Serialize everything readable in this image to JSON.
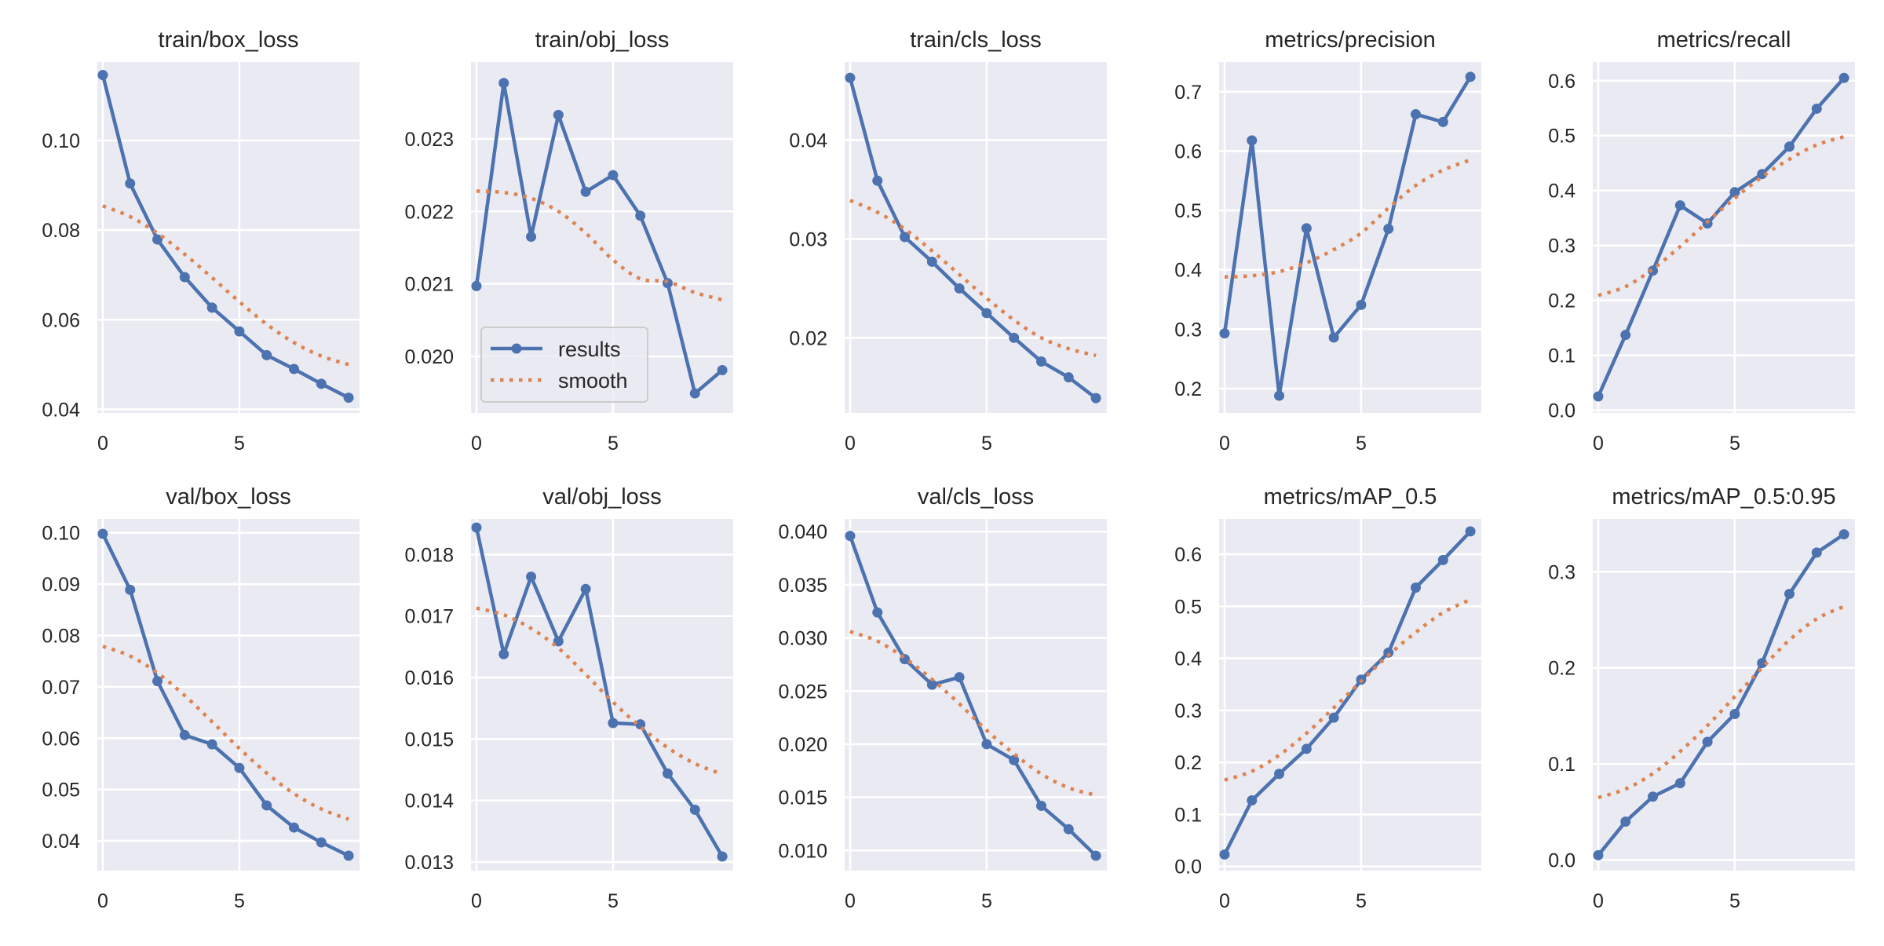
{
  "chart_data": [
    {
      "type": "line",
      "title": "train/box_loss",
      "xlabel": "",
      "ylabel": "",
      "x": [
        0,
        1,
        2,
        3,
        4,
        5,
        6,
        7,
        8,
        9
      ],
      "xticks": [
        0,
        5
      ],
      "xlim": [
        -0.2,
        9.4
      ],
      "ylim": [
        0.0392,
        0.1175
      ],
      "yticks": [
        0.04,
        0.06,
        0.08,
        0.1
      ],
      "ytick_labels": [
        "0.04",
        "0.06",
        "0.08",
        "0.10"
      ],
      "grid": true,
      "series": [
        {
          "name": "results",
          "style": "line-marker",
          "values": [
            0.1146,
            0.0904,
            0.0779,
            0.0695,
            0.0627,
            0.0574,
            0.0521,
            0.049,
            0.0457,
            0.0426
          ]
        },
        {
          "name": "smooth",
          "style": "dotted",
          "values": [
            0.0854,
            0.083,
            0.0793,
            0.0746,
            0.0694,
            0.064,
            0.059,
            0.0549,
            0.0519,
            0.05
          ]
        }
      ]
    },
    {
      "type": "line",
      "title": "train/obj_loss",
      "xlabel": "",
      "ylabel": "",
      "x": [
        0,
        1,
        2,
        3,
        4,
        5,
        6,
        7,
        8,
        9
      ],
      "xticks": [
        0,
        5
      ],
      "xlim": [
        -0.2,
        9.4
      ],
      "ylim": [
        0.01922,
        0.02406
      ],
      "yticks": [
        0.02,
        0.021,
        0.022,
        0.023
      ],
      "ytick_labels": [
        "0.020",
        "0.021",
        "0.022",
        "0.023"
      ],
      "grid": true,
      "legend": {
        "entries": [
          "results",
          "smooth"
        ],
        "placement": "lower-left"
      },
      "series": [
        {
          "name": "results",
          "style": "line-marker",
          "values": [
            0.02097,
            0.02377,
            0.02165,
            0.02333,
            0.02227,
            0.0225,
            0.02194,
            0.02101,
            0.01949,
            0.01981
          ]
        },
        {
          "name": "smooth",
          "style": "dotted",
          "values": [
            0.02228,
            0.02226,
            0.02218,
            0.022,
            0.0217,
            0.02133,
            0.02107,
            0.02103,
            0.02088,
            0.02078
          ]
        }
      ]
    },
    {
      "type": "line",
      "title": "train/cls_loss",
      "xlabel": "",
      "ylabel": "",
      "x": [
        0,
        1,
        2,
        3,
        4,
        5,
        6,
        7,
        8,
        9
      ],
      "xticks": [
        0,
        5
      ],
      "xlim": [
        -0.2,
        9.4
      ],
      "ylim": [
        0.0124,
        0.0479
      ],
      "yticks": [
        0.02,
        0.03,
        0.04
      ],
      "ytick_labels": [
        "0.02",
        "0.03",
        "0.04"
      ],
      "grid": true,
      "series": [
        {
          "name": "results",
          "style": "line-marker",
          "values": [
            0.0463,
            0.0359,
            0.0302,
            0.0277,
            0.025,
            0.0225,
            0.02,
            0.0176,
            0.016,
            0.0139
          ]
        },
        {
          "name": "smooth",
          "style": "dotted",
          "values": [
            0.0339,
            0.0327,
            0.031,
            0.0288,
            0.0264,
            0.024,
            0.0218,
            0.02,
            0.0189,
            0.0182
          ]
        }
      ]
    },
    {
      "type": "line",
      "title": "metrics/precision",
      "xlabel": "",
      "ylabel": "",
      "x": [
        0,
        1,
        2,
        3,
        4,
        5,
        6,
        7,
        8,
        9
      ],
      "xticks": [
        0,
        5
      ],
      "xlim": [
        -0.2,
        9.4
      ],
      "ylim": [
        0.159,
        0.75
      ],
      "yticks": [
        0.2,
        0.3,
        0.4,
        0.5,
        0.6,
        0.7
      ],
      "ytick_labels": [
        "0.2",
        "0.3",
        "0.4",
        "0.5",
        "0.6",
        "0.7"
      ],
      "grid": true,
      "series": [
        {
          "name": "results",
          "style": "line-marker",
          "values": [
            0.293,
            0.618,
            0.188,
            0.47,
            0.286,
            0.341,
            0.469,
            0.662,
            0.649,
            0.725
          ]
        },
        {
          "name": "smooth",
          "style": "dotted",
          "values": [
            0.388,
            0.39,
            0.397,
            0.412,
            0.434,
            0.462,
            0.504,
            0.542,
            0.568,
            0.585
          ]
        }
      ]
    },
    {
      "type": "line",
      "title": "metrics/recall",
      "xlabel": "",
      "ylabel": "",
      "x": [
        0,
        1,
        2,
        3,
        4,
        5,
        6,
        7,
        8,
        9
      ],
      "xticks": [
        0,
        5
      ],
      "xlim": [
        -0.2,
        9.4
      ],
      "ylim": [
        -0.005,
        0.634
      ],
      "yticks": [
        0.0,
        0.1,
        0.2,
        0.3,
        0.4,
        0.5,
        0.6
      ],
      "ytick_labels": [
        "0.0",
        "0.1",
        "0.2",
        "0.3",
        "0.4",
        "0.5",
        "0.6"
      ],
      "grid": true,
      "series": [
        {
          "name": "results",
          "style": "line-marker",
          "values": [
            0.025,
            0.137,
            0.254,
            0.373,
            0.34,
            0.397,
            0.43,
            0.48,
            0.549,
            0.605
          ]
        },
        {
          "name": "smooth",
          "style": "dotted",
          "values": [
            0.209,
            0.225,
            0.257,
            0.298,
            0.343,
            0.386,
            0.425,
            0.457,
            0.483,
            0.498
          ]
        }
      ]
    },
    {
      "type": "line",
      "title": "val/box_loss",
      "xlabel": "",
      "ylabel": "",
      "x": [
        0,
        1,
        2,
        3,
        4,
        5,
        6,
        7,
        8,
        9
      ],
      "xticks": [
        0,
        5
      ],
      "xlim": [
        -0.2,
        9.4
      ],
      "ylim": [
        0.0342,
        0.1027
      ],
      "yticks": [
        0.04,
        0.05,
        0.06,
        0.07,
        0.08,
        0.09,
        0.1
      ],
      "ytick_labels": [
        "0.04",
        "0.05",
        "0.06",
        "0.07",
        "0.08",
        "0.09",
        "0.10"
      ],
      "grid": true,
      "series": [
        {
          "name": "results",
          "style": "line-marker",
          "values": [
            0.0998,
            0.0889,
            0.0711,
            0.0606,
            0.0588,
            0.0542,
            0.0469,
            0.0426,
            0.0397,
            0.0371
          ]
        },
        {
          "name": "smooth",
          "style": "dotted",
          "values": [
            0.0779,
            0.076,
            0.0727,
            0.0683,
            0.0632,
            0.058,
            0.0532,
            0.0492,
            0.0462,
            0.0442
          ]
        }
      ]
    },
    {
      "type": "line",
      "title": "val/obj_loss",
      "xlabel": "",
      "ylabel": "",
      "x": [
        0,
        1,
        2,
        3,
        4,
        5,
        6,
        7,
        8,
        9
      ],
      "xticks": [
        0,
        5
      ],
      "xlim": [
        -0.2,
        9.4
      ],
      "ylim": [
        0.01286,
        0.01858
      ],
      "yticks": [
        0.013,
        0.014,
        0.015,
        0.016,
        0.017,
        0.018
      ],
      "ytick_labels": [
        "0.013",
        "0.014",
        "0.015",
        "0.016",
        "0.017",
        "0.018"
      ],
      "grid": true,
      "series": [
        {
          "name": "results",
          "style": "line-marker",
          "values": [
            0.01844,
            0.01638,
            0.01764,
            0.01659,
            0.01744,
            0.01526,
            0.01524,
            0.01444,
            0.01385,
            0.01309
          ]
        },
        {
          "name": "smooth",
          "style": "dotted",
          "values": [
            0.01713,
            0.01702,
            0.0168,
            0.01648,
            0.01605,
            0.0156,
            0.0152,
            0.01486,
            0.0146,
            0.01443
          ]
        }
      ]
    },
    {
      "type": "line",
      "title": "val/cls_loss",
      "xlabel": "",
      "ylabel": "",
      "x": [
        0,
        1,
        2,
        3,
        4,
        5,
        6,
        7,
        8,
        9
      ],
      "xticks": [
        0,
        5
      ],
      "xlim": [
        -0.2,
        9.4
      ],
      "ylim": [
        0.0081,
        0.0412
      ],
      "yticks": [
        0.01,
        0.015,
        0.02,
        0.025,
        0.03,
        0.035,
        0.04
      ],
      "ytick_labels": [
        "0.010",
        "0.015",
        "0.020",
        "0.025",
        "0.030",
        "0.035",
        "0.040"
      ],
      "grid": true,
      "series": [
        {
          "name": "results",
          "style": "line-marker",
          "values": [
            0.0396,
            0.0324,
            0.028,
            0.0256,
            0.0263,
            0.02,
            0.0185,
            0.0142,
            0.012,
            0.0095
          ]
        },
        {
          "name": "smooth",
          "style": "dotted",
          "values": [
            0.0306,
            0.0297,
            0.0281,
            0.0261,
            0.0238,
            0.0213,
            0.0191,
            0.0172,
            0.0159,
            0.0152
          ]
        }
      ]
    },
    {
      "type": "line",
      "title": "metrics/mAP_0.5",
      "xlabel": "",
      "ylabel": "",
      "x": [
        0,
        1,
        2,
        3,
        4,
        5,
        6,
        7,
        8,
        9
      ],
      "xticks": [
        0,
        5
      ],
      "xlim": [
        -0.2,
        9.4
      ],
      "ylim": [
        -0.008,
        0.668
      ],
      "yticks": [
        0.0,
        0.1,
        0.2,
        0.3,
        0.4,
        0.5,
        0.6
      ],
      "ytick_labels": [
        "0.0",
        "0.1",
        "0.2",
        "0.3",
        "0.4",
        "0.5",
        "0.6"
      ],
      "grid": true,
      "series": [
        {
          "name": "results",
          "style": "line-marker",
          "values": [
            0.023,
            0.127,
            0.178,
            0.226,
            0.286,
            0.359,
            0.411,
            0.536,
            0.589,
            0.644
          ]
        },
        {
          "name": "smooth",
          "style": "dotted",
          "values": [
            0.166,
            0.183,
            0.214,
            0.256,
            0.305,
            0.356,
            0.406,
            0.45,
            0.488,
            0.513
          ]
        }
      ]
    },
    {
      "type": "line",
      "title": "metrics/mAP_0.5:0.95",
      "xlabel": "",
      "ylabel": "",
      "x": [
        0,
        1,
        2,
        3,
        4,
        5,
        6,
        7,
        8,
        9
      ],
      "xticks": [
        0,
        5
      ],
      "xlim": [
        -0.2,
        9.4
      ],
      "ylim": [
        -0.011,
        0.355
      ],
      "yticks": [
        0.0,
        0.1,
        0.2,
        0.3
      ],
      "ytick_labels": [
        "0.0",
        "0.1",
        "0.2",
        "0.3"
      ],
      "grid": true,
      "series": [
        {
          "name": "results",
          "style": "line-marker",
          "values": [
            0.005,
            0.04,
            0.066,
            0.08,
            0.123,
            0.152,
            0.205,
            0.277,
            0.32,
            0.339
          ]
        },
        {
          "name": "smooth",
          "style": "dotted",
          "values": [
            0.065,
            0.074,
            0.09,
            0.113,
            0.14,
            0.17,
            0.2,
            0.229,
            0.251,
            0.264
          ]
        }
      ]
    }
  ],
  "legend": {
    "entries": [
      "results",
      "smooth"
    ]
  },
  "colors": {
    "results": "#4c72b0",
    "smooth": "#dd8452",
    "plot_background": "#eaeaf2",
    "grid": "#ffffff",
    "text": "#262626"
  }
}
